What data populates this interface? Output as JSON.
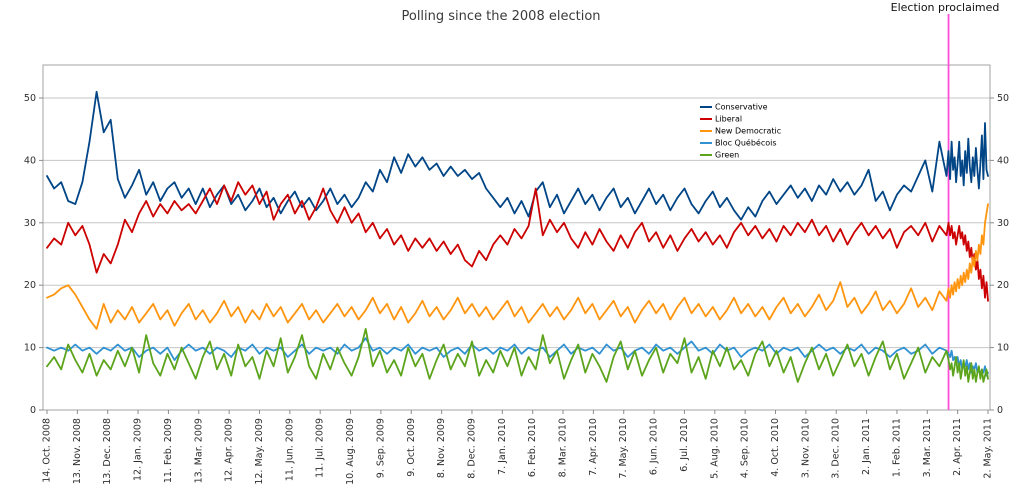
{
  "title": "Polling since the 2008 election",
  "annotation": {
    "label": "Election proclaimed",
    "day": 891
  },
  "colors": {
    "conservative": "#004586",
    "liberal": "#cc0000",
    "new_democratic": "#ff950e",
    "bloc": "#3092d2",
    "green": "#5ca41c",
    "annotation_line": "#ff4fd8",
    "grid": "#c6c6c6",
    "border": "#a3a3a3"
  },
  "chart_data": {
    "type": "line",
    "title": "Polling since the 2008 election",
    "xlabel": "",
    "ylabel": "",
    "ylim": [
      0,
      55.3
    ],
    "y_ticks": [
      0,
      10,
      20,
      30,
      40,
      50
    ],
    "y_tick_labels": [
      "0",
      "10",
      "20",
      "30",
      "40",
      "50"
    ],
    "grid": "horizontal",
    "legend_position": "inside-top-right",
    "x_unit": "days since 14 Oct 2008",
    "x_tick_step_days": 30,
    "x_tick_labels": [
      "14. Oct. 2008",
      "13. Nov. 2008",
      "13. Dec. 2008",
      "12. Jan. 2009",
      "11. Feb. 2009",
      "13. Mar. 2009",
      "12. Apr. 2009",
      "12. May. 2009",
      "11. Jun. 2009",
      "11. Jul. 2009",
      "10. Aug. 2009",
      "9. Sep. 2009",
      "9. Oct. 2009",
      "8. Nov. 2009",
      "8. Dec. 2009",
      "7. Jan. 2010",
      "6. Feb. 2010",
      "8. Mar. 2010",
      "7. Apr. 2010",
      "7. May. 2010",
      "6. Jun. 2010",
      "6. Jul. 2010",
      "5. Aug. 2010",
      "4. Sep. 2010",
      "4. Oct. 2010",
      "3. Nov. 2010",
      "3. Dec. 2010",
      "2. Jan. 2011",
      "1. Feb. 2011",
      "3. Mar. 2011",
      "2. Apr. 2011",
      "2. May. 2011"
    ],
    "sampling": {
      "pre_start_day": 0,
      "pre_step_days": 7,
      "campaign_start_day": 891,
      "campaign_step_days": 1.5
    },
    "series": [
      {
        "name": "Conservative",
        "color": "#004586",
        "pre": [
          37.5,
          35.5,
          36.5,
          33.5,
          33,
          36.5,
          43,
          51,
          44.5,
          46.5,
          37,
          34,
          36,
          38.5,
          34.5,
          36.5,
          33.5,
          35.5,
          36.5,
          34,
          35.5,
          33,
          35.5,
          32.5,
          34.5,
          36,
          33,
          34.5,
          32,
          33.5,
          35.5,
          32.5,
          34,
          31.5,
          33.5,
          35,
          32.5,
          34,
          32,
          33.5,
          35.5,
          33,
          34.5,
          32.5,
          34,
          36.5,
          35,
          38.5,
          36.5,
          40.5,
          38,
          41,
          39,
          40.5,
          38.5,
          39.5,
          37.5,
          39,
          37.5,
          38.5,
          37,
          38,
          35.5,
          34,
          32.5,
          34,
          31.5,
          33.5,
          31,
          35,
          36.5,
          32.5,
          34.5,
          31.5,
          33.5,
          35.5,
          33,
          34.5,
          32,
          34,
          35.5,
          32.5,
          34,
          31.5,
          33.5,
          35.5,
          33,
          34.5,
          32,
          34,
          35.5,
          33,
          31.5,
          33.5,
          35,
          32.5,
          34,
          32,
          30.5,
          32.5,
          31,
          33.5,
          35,
          33,
          34.5,
          36,
          34,
          35.5,
          33.5,
          36,
          34.5,
          37,
          35,
          36.5,
          34.5,
          36,
          38.5,
          33.5,
          35,
          32,
          34.5,
          36,
          35,
          37.5,
          40,
          35,
          43,
          37.5
        ],
        "campaign": [
          41.5,
          37,
          43,
          38.5,
          40.5,
          36.5,
          39.5,
          43,
          37.5,
          40,
          36,
          41.5,
          38,
          43.5,
          39,
          36.5,
          40.5,
          37.5,
          42,
          38.5,
          35.5,
          39.5,
          44,
          37,
          46,
          38.5,
          37.5
        ]
      },
      {
        "name": "Liberal",
        "color": "#cc0000",
        "pre": [
          26,
          27.5,
          26.5,
          30,
          28,
          29.5,
          26.5,
          22,
          25,
          23.5,
          26.5,
          30.5,
          28.5,
          31.5,
          33.5,
          31,
          33,
          31.5,
          33.5,
          32,
          33,
          31.5,
          33.5,
          35.5,
          33,
          36,
          33.5,
          36.5,
          34.5,
          36,
          33,
          35,
          30.5,
          33,
          34.5,
          31.5,
          33.5,
          30.5,
          32.5,
          35.5,
          32,
          30,
          32.5,
          30,
          31.5,
          28.5,
          30,
          27.5,
          29,
          26.5,
          28,
          25.5,
          27.5,
          26,
          27.5,
          25.5,
          27,
          25,
          26.5,
          24,
          23,
          25.5,
          24,
          26.5,
          28,
          26.5,
          29,
          27.5,
          29.5,
          35.5,
          28,
          30.5,
          28.5,
          30,
          27.5,
          26,
          28.5,
          26.5,
          29,
          27,
          25.5,
          28,
          26,
          28.5,
          30,
          27,
          28.5,
          26,
          28,
          25.5,
          27.5,
          29,
          27,
          28.5,
          26.5,
          28,
          26,
          28.5,
          30,
          28,
          29.5,
          27.5,
          29,
          27,
          29.5,
          28,
          30,
          28.5,
          30.5,
          28,
          29.5,
          27,
          29,
          26.5,
          28.5,
          30,
          28,
          29.5,
          27.5,
          29,
          26,
          28.5,
          29.5,
          28,
          30,
          27,
          29.5,
          28
        ],
        "campaign": [
          30,
          28,
          29.5,
          27.5,
          28.5,
          26.5,
          28,
          29.5,
          27.5,
          28.5,
          26.5,
          28,
          25.5,
          27,
          24.5,
          26,
          23.5,
          25,
          22.5,
          24,
          21,
          22.5,
          19.5,
          21.5,
          18,
          20.5,
          17.5
        ]
      },
      {
        "name": "New Democratic",
        "color": "#ff950e",
        "pre": [
          18,
          18.5,
          19.5,
          20,
          18.5,
          16.5,
          14.5,
          13,
          17,
          14,
          16,
          14.5,
          16.5,
          14,
          15.5,
          17,
          14.5,
          16,
          13.5,
          15.5,
          17,
          14.5,
          16,
          14,
          15.5,
          17.5,
          15,
          16.5,
          14,
          16,
          14.5,
          17,
          15,
          16.5,
          14,
          15.5,
          17,
          14.5,
          16,
          14,
          15.5,
          17,
          15,
          16.5,
          14.5,
          16,
          18,
          15.5,
          17,
          14.5,
          16.5,
          14,
          15.5,
          17.5,
          15,
          16.5,
          14.5,
          16,
          18,
          15.5,
          17,
          15,
          16.5,
          14.5,
          16,
          17.5,
          15,
          16.5,
          14,
          15.5,
          17,
          15,
          16.5,
          14.5,
          16,
          18,
          15.5,
          17,
          14.5,
          16,
          17.5,
          15,
          16.5,
          14,
          16,
          17.5,
          15.5,
          17,
          14.5,
          16.5,
          18,
          15.5,
          17,
          15,
          16.5,
          14.5,
          16,
          18,
          15.5,
          17,
          15,
          16.5,
          14.5,
          16.5,
          18,
          15.5,
          17,
          15,
          16.5,
          18.5,
          16,
          17.5,
          20.5,
          16.5,
          18,
          15.5,
          17,
          19,
          16,
          17.5,
          15.5,
          17,
          19.5,
          16.5,
          18,
          16,
          19,
          17.5
        ],
        "campaign": [
          19.5,
          18,
          20,
          18.5,
          20.5,
          19,
          21,
          19.5,
          21.5,
          20,
          22,
          20.5,
          22.5,
          21,
          23.5,
          22,
          24.5,
          23,
          25.5,
          24,
          26.5,
          25,
          28,
          26.5,
          30,
          31.5,
          33
        ]
      },
      {
        "name": "Bloc Québécois",
        "color": "#3092d2",
        "pre": [
          10,
          9.5,
          10,
          9.5,
          10.5,
          9.5,
          10,
          9,
          10,
          9.5,
          10.5,
          9.5,
          10,
          8.5,
          9.5,
          10,
          9,
          10,
          8,
          9.5,
          10.5,
          9.5,
          10,
          9,
          10,
          9.5,
          8.5,
          10,
          9.5,
          10.5,
          9,
          10,
          9.5,
          10,
          8.5,
          9.5,
          10.5,
          9,
          10,
          9.5,
          10,
          9,
          10.5,
          9.5,
          10,
          11.5,
          9.5,
          10,
          9,
          10,
          9.5,
          10.5,
          9,
          10,
          9.5,
          10,
          8.5,
          9.5,
          10,
          9,
          10.5,
          9.5,
          10,
          9,
          10,
          9.5,
          10.5,
          9,
          10,
          9.5,
          10,
          8.5,
          9.5,
          10.5,
          9,
          10,
          9.5,
          10,
          9,
          10.5,
          9.5,
          10,
          8.5,
          9.5,
          10,
          9,
          10.5,
          9.5,
          10,
          9,
          10,
          11,
          9.5,
          10,
          9,
          10.5,
          9.5,
          10,
          8.5,
          9.5,
          10,
          9.5,
          10.5,
          9,
          10,
          9.5,
          10,
          8.5,
          9.5,
          10.5,
          9.5,
          10,
          9,
          10,
          9.5,
          10.5,
          9,
          10,
          9.5,
          8.5,
          9.5,
          10,
          9,
          9.5,
          10.5,
          9,
          10,
          9.5
        ],
        "campaign": [
          9,
          8.5,
          9.5,
          8,
          8.5,
          7.5,
          8.5,
          7,
          8,
          6.5,
          7.5,
          7,
          8,
          6.5,
          7.5,
          6,
          7,
          6.5,
          7.5,
          6,
          6.5,
          5.5,
          6.5,
          6,
          7,
          5.5,
          6
        ]
      },
      {
        "name": "Green",
        "color": "#5ca41c",
        "pre": [
          7,
          8.5,
          6.5,
          10.5,
          8,
          6,
          9,
          5.5,
          8,
          6.5,
          9.5,
          7,
          10,
          6,
          12,
          7.5,
          5.5,
          9,
          6.5,
          10,
          7.5,
          5,
          8.5,
          11,
          6.5,
          9,
          5.5,
          10.5,
          7,
          8.5,
          5,
          9.5,
          7,
          11.5,
          6,
          8.5,
          12,
          7,
          5,
          9,
          6.5,
          10,
          7.5,
          5.5,
          8.5,
          13,
          7,
          9.5,
          6,
          8,
          5.5,
          10,
          7,
          9,
          5,
          8,
          10.5,
          6.5,
          9,
          7,
          11,
          5.5,
          8,
          6,
          9.5,
          7,
          10,
          5.5,
          8.5,
          6.5,
          12,
          7.5,
          9.5,
          5,
          8,
          10.5,
          6,
          9,
          7,
          4.5,
          8.5,
          11,
          6.5,
          9.5,
          5.5,
          8,
          10,
          6,
          9,
          7.5,
          11.5,
          6,
          8.5,
          5,
          9.5,
          7,
          10,
          6.5,
          8,
          5.5,
          9,
          11,
          7,
          9.5,
          6,
          8.5,
          4.5,
          7.5,
          10,
          6.5,
          9,
          5.5,
          8,
          10.5,
          7,
          9,
          5.5,
          8.5,
          11,
          6.5,
          9,
          5,
          7.5,
          10,
          6,
          8.5,
          7,
          9.5
        ],
        "campaign": [
          8,
          6.5,
          7.5,
          5.5,
          7,
          8.5,
          6,
          7.5,
          5,
          6.5,
          8,
          5.5,
          7,
          4.5,
          6,
          7.5,
          5,
          6.5,
          4.5,
          6,
          7,
          5,
          6.5,
          4.5,
          5.5,
          6.5,
          5
        ]
      }
    ]
  }
}
